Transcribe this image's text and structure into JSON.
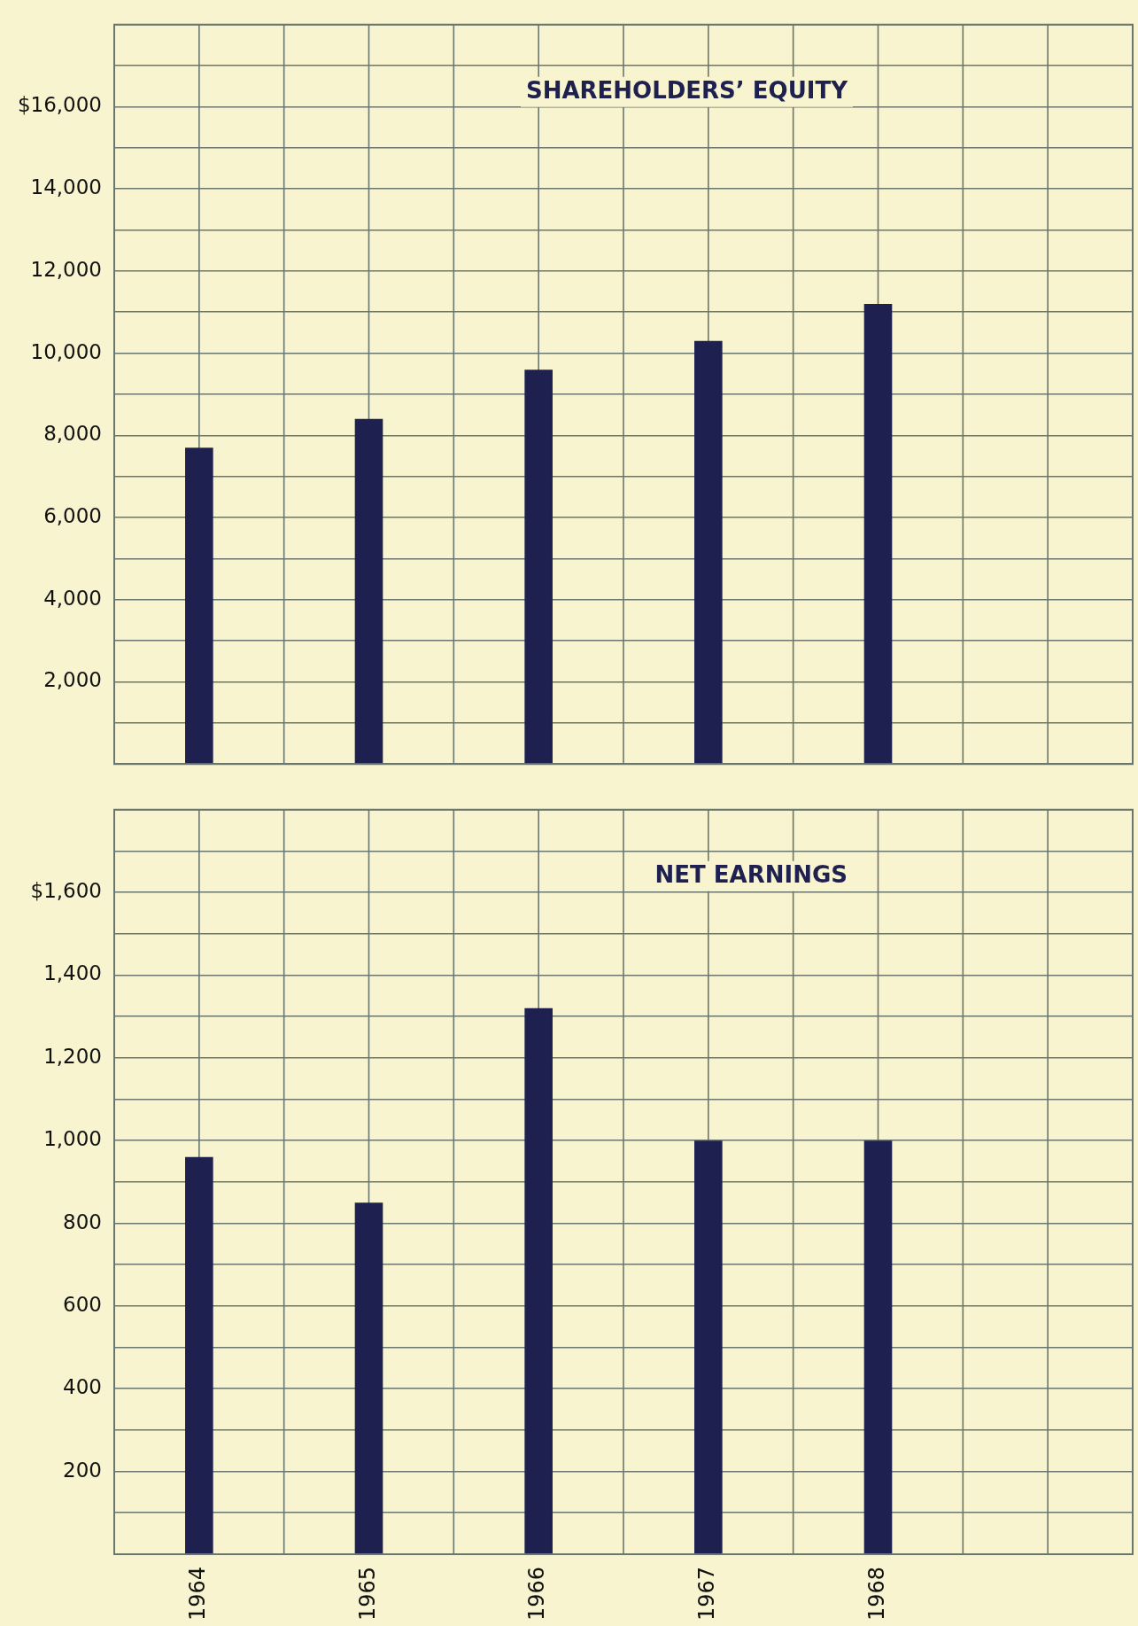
{
  "chart_data": [
    {
      "type": "bar",
      "title": "SHAREHOLDERS’ EQUITY",
      "categories": [
        "1964",
        "1965",
        "1966",
        "1967",
        "1968",
        null
      ],
      "values": [
        7700,
        8400,
        9600,
        10300,
        11200,
        null
      ],
      "color": "#1e2150",
      "ylim": [
        0,
        18000
      ],
      "yticks": [
        {
          "value": 0,
          "label": null
        },
        {
          "value": 1000,
          "label": null
        },
        {
          "value": 2000,
          "label": "2,000"
        },
        {
          "value": 3000,
          "label": null
        },
        {
          "value": 4000,
          "label": "4,000"
        },
        {
          "value": 5000,
          "label": null
        },
        {
          "value": 6000,
          "label": "6,000"
        },
        {
          "value": 7000,
          "label": null
        },
        {
          "value": 8000,
          "label": "8,000"
        },
        {
          "value": 9000,
          "label": null
        },
        {
          "value": 10000,
          "label": "10,000"
        },
        {
          "value": 11000,
          "label": null
        },
        {
          "value": 12000,
          "label": "12,000"
        },
        {
          "value": 13000,
          "label": null
        },
        {
          "value": 14000,
          "label": "14,000"
        },
        {
          "value": 15000,
          "label": null
        },
        {
          "value": 16000,
          "label": "$16,000"
        },
        {
          "value": 17000,
          "label": null
        },
        {
          "value": 18000,
          "label": null
        }
      ],
      "grid": true,
      "tick_labels": "y"
    },
    {
      "type": "bar",
      "title": "NET EARNINGS",
      "categories": [
        "1964",
        "1965",
        "1966",
        "1967",
        "1968",
        null
      ],
      "values": [
        960,
        850,
        1320,
        1000,
        1000,
        null
      ],
      "color": "#1e2150",
      "ylim": [
        0,
        1800
      ],
      "yticks": [
        {
          "value": 0,
          "label": null
        },
        {
          "value": 100,
          "label": null
        },
        200,
        {
          "value": 300,
          "label": null
        },
        400,
        {
          "value": 500,
          "label": null
        },
        600,
        {
          "value": 700,
          "label": null
        },
        800,
        {
          "value": 900,
          "label": null
        },
        {
          "value": 1000,
          "label": "1,000"
        },
        {
          "value": 1100,
          "label": null
        },
        {
          "value": 1200,
          "label": "1,200"
        },
        {
          "value": 1300,
          "label": null
        },
        {
          "value": 1400,
          "label": "1,400"
        },
        {
          "value": 1500,
          "label": null
        },
        {
          "value": 1600,
          "label": "$1,600"
        },
        {
          "value": 1700,
          "label": null
        },
        {
          "value": 1800,
          "label": null
        }
      ],
      "grid": true
    }
  ]
}
